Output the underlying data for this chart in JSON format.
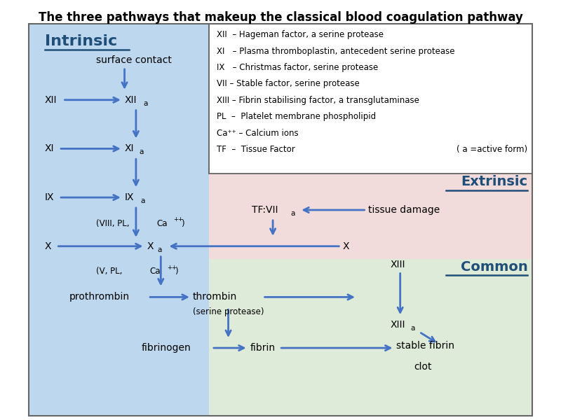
{
  "title": "The three pathways that makeup the classical blood coagulation pathway",
  "title_fontsize": 12,
  "arrow_color": "#4472C4",
  "arrow_lw": 2.0,
  "text_color": "#000000",
  "blue_label_color": "#1F4E79",
  "bg_intrinsic": "#BDD7EE",
  "bg_extrinsic": "#F2DCDB",
  "bg_common": "#DEEBD8",
  "bg_legend": "#FFFFFF",
  "border_color": "#666666",
  "legend_lines": [
    "XII  – Hageman factor, a serine protease",
    "XI   – Plasma thromboplastin, antecedent serine protease",
    "IX   – Christmas factor, serine protease",
    "VII – Stable factor, serine protease",
    "XIII – Fibrin stabilising factor, a transglutaminase",
    "PL  –  Platelet membrane phospholipid",
    "Ca⁺⁺ – Calcium ions",
    "TF  –  Tissue Factor"
  ],
  "legend_note": "( a =active form)"
}
